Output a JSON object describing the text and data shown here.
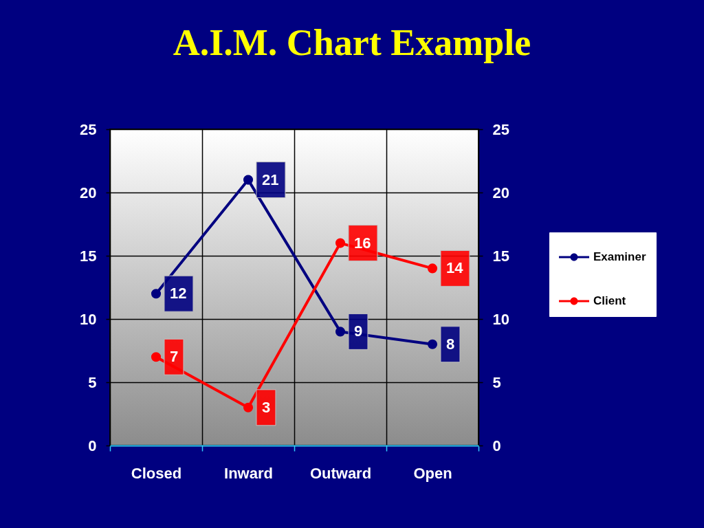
{
  "chart_data": {
    "type": "line",
    "title": "A.I.M. Chart Example",
    "categories": [
      "Closed",
      "Inward",
      "Outward",
      "Open"
    ],
    "series": [
      {
        "name": "Examiner",
        "color": "#000080",
        "values": [
          12,
          21,
          9,
          8
        ]
      },
      {
        "name": "Client",
        "color": "#ff0000",
        "values": [
          7,
          3,
          16,
          14
        ]
      }
    ],
    "ylim": [
      0,
      25
    ],
    "yticks": [
      0,
      5,
      10,
      15,
      20,
      25
    ],
    "y2lim": [
      0,
      25
    ],
    "y2ticks": [
      0,
      5,
      10,
      15,
      20,
      25
    ],
    "grid": true,
    "legend": "right",
    "marker": "circle",
    "line_style": "solid",
    "data_labels": true
  }
}
